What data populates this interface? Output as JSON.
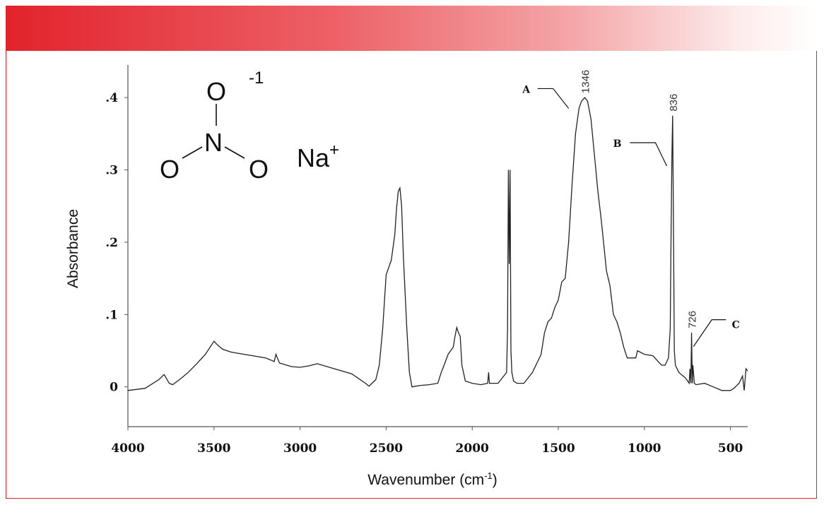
{
  "chart_data": {
    "type": "line",
    "xlabel": "Wavenumber (cm",
    "xlabel_sup": "-1",
    "xlabel_end": ")",
    "ylabel": "Absorbance",
    "xlim": [
      4000,
      400
    ],
    "ylim": [
      -0.055,
      0.445
    ],
    "x_ticks": [
      4000,
      3500,
      3000,
      2500,
      2000,
      1500,
      1000,
      500
    ],
    "x_tick_labels": [
      "4000",
      "3500",
      "3000",
      "2500",
      "2000",
      "1500",
      "1000",
      "500"
    ],
    "y_ticks": [
      0,
      0.1,
      0.2,
      0.3,
      0.4
    ],
    "y_tick_labels": [
      "0",
      ".1",
      ".2",
      ".3",
      ".4"
    ],
    "series": [
      {
        "x": [
          4000,
          3900,
          3820,
          3790,
          3760,
          3740,
          3700,
          3650,
          3600,
          3550,
          3500,
          3480,
          3450,
          3400,
          3300,
          3200,
          3150,
          3140,
          3120,
          3050,
          3000,
          2950,
          2900,
          2800,
          2700,
          2620,
          2600,
          2560,
          2540,
          2520,
          2500,
          2470,
          2450,
          2440,
          2430,
          2420,
          2410,
          2400,
          2380,
          2365,
          2350,
          2300,
          2250,
          2200,
          2180,
          2160,
          2140,
          2110,
          2100,
          2090,
          2080,
          2070,
          2060,
          2040,
          2000,
          1950,
          1910,
          1905,
          1900,
          1850,
          1800,
          1795,
          1790,
          1785,
          1780,
          1775,
          1770,
          1760,
          1740,
          1700,
          1650,
          1600,
          1580,
          1560,
          1540,
          1520,
          1500,
          1480,
          1460,
          1440,
          1420,
          1400,
          1380,
          1365,
          1346,
          1330,
          1310,
          1290,
          1270,
          1250,
          1220,
          1200,
          1180,
          1160,
          1140,
          1120,
          1100,
          1050,
          1040,
          1000,
          950,
          920,
          900,
          880,
          860,
          850,
          845,
          840,
          836,
          832,
          826,
          820,
          800,
          760,
          740,
          735,
          730,
          726,
          722,
          718,
          710,
          700,
          650,
          600,
          550,
          500,
          480,
          450,
          430,
          420,
          410,
          400
        ],
        "y": [
          -0.005,
          -0.002,
          0.01,
          0.017,
          0.005,
          0.003,
          0.01,
          0.02,
          0.032,
          0.045,
          0.063,
          0.058,
          0.052,
          0.048,
          0.044,
          0.04,
          0.035,
          0.045,
          0.033,
          0.028,
          0.027,
          0.029,
          0.032,
          0.025,
          0.018,
          0.005,
          0.001,
          0.01,
          0.03,
          0.08,
          0.155,
          0.175,
          0.21,
          0.245,
          0.27,
          0.275,
          0.25,
          0.18,
          0.08,
          0.02,
          0.0,
          0.002,
          0.003,
          0.005,
          0.02,
          0.032,
          0.045,
          0.055,
          0.07,
          0.082,
          0.075,
          0.07,
          0.03,
          0.008,
          0.005,
          0.003,
          0.005,
          0.02,
          0.005,
          0.005,
          0.02,
          0.08,
          0.3,
          0.17,
          0.3,
          0.05,
          0.02,
          0.008,
          0.005,
          0.005,
          0.02,
          0.045,
          0.075,
          0.09,
          0.095,
          0.11,
          0.12,
          0.145,
          0.15,
          0.2,
          0.28,
          0.35,
          0.385,
          0.395,
          0.4,
          0.395,
          0.37,
          0.32,
          0.27,
          0.23,
          0.16,
          0.14,
          0.1,
          0.09,
          0.075,
          0.055,
          0.04,
          0.04,
          0.05,
          0.045,
          0.043,
          0.035,
          0.03,
          0.03,
          0.04,
          0.08,
          0.21,
          0.32,
          0.375,
          0.25,
          0.05,
          0.03,
          0.02,
          0.012,
          0.005,
          0.025,
          0.005,
          0.075,
          0.005,
          0.03,
          0.005,
          0.003,
          0.005,
          0.0,
          -0.005,
          -0.005,
          -0.002,
          0.005,
          0.015,
          -0.005,
          0.025,
          0.022
        ]
      }
    ],
    "peak_labels": [
      {
        "x": 1346,
        "y": 0.4,
        "text": "1346"
      },
      {
        "x": 836,
        "y": 0.375,
        "text": "836"
      },
      {
        "x": 726,
        "y": 0.075,
        "text": "726"
      }
    ],
    "annotations": [
      {
        "letter": "A",
        "x": 1440,
        "y": 0.385
      },
      {
        "letter": "B",
        "x": 870,
        "y": 0.32
      },
      {
        "letter": "C",
        "x": 715,
        "y": 0.085
      }
    ]
  },
  "molecule": {
    "atom_top": "O",
    "charge": "-1",
    "atom_center": "N",
    "atom_left": "O",
    "atom_right": "O",
    "counter_ion": "Na",
    "counter_charge": "+"
  },
  "colors": {
    "banner_start": "#e2232c",
    "frame": "#e2232c",
    "line": "#222222"
  }
}
